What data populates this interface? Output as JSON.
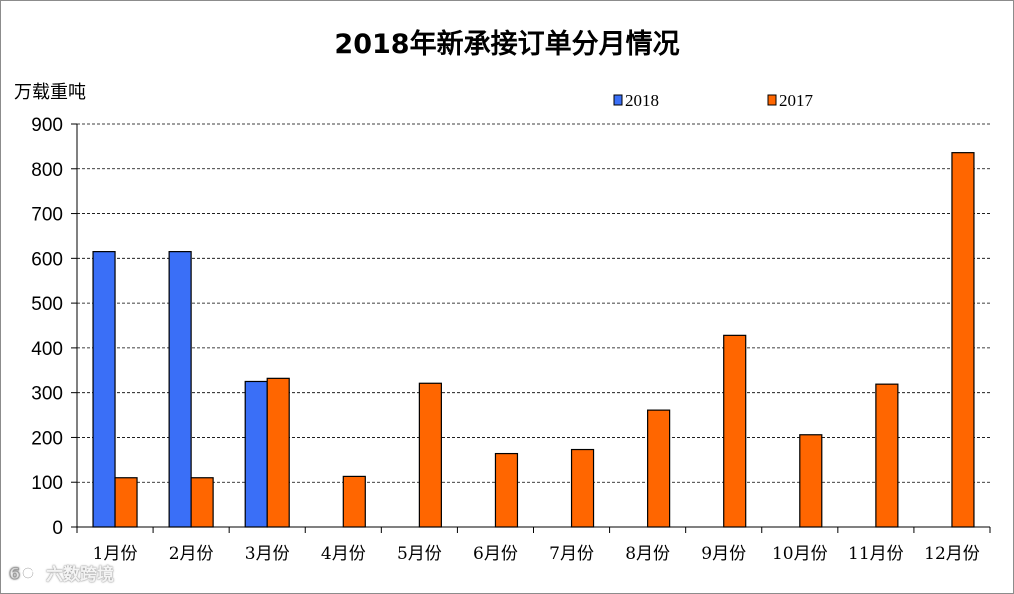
{
  "chart_data": {
    "type": "bar",
    "title": "2018年新承接订单分月情况",
    "ylabel": "万载重吨",
    "xlabel": "",
    "categories": [
      "1月份",
      "2月份",
      "3月份",
      "4月份",
      "5月份",
      "6月份",
      "7月份",
      "8月份",
      "9月份",
      "10月份",
      "11月份",
      "12月份"
    ],
    "series": [
      {
        "name": "2018",
        "color": "#3a6ff7",
        "values": [
          615,
          615,
          325,
          null,
          null,
          null,
          null,
          null,
          null,
          null,
          null,
          null
        ]
      },
      {
        "name": "2017",
        "color": "#ff6600",
        "values": [
          110,
          110,
          332,
          113,
          321,
          164,
          173,
          261,
          428,
          206,
          319,
          836
        ]
      }
    ],
    "ylim": [
      0,
      900
    ],
    "yticks": [
      0,
      100,
      200,
      300,
      400,
      500,
      600,
      700,
      800,
      900
    ],
    "grid": true,
    "legend_position": "top-right"
  },
  "watermark": {
    "text": "六数跨境",
    "icon": "logo-icon"
  }
}
